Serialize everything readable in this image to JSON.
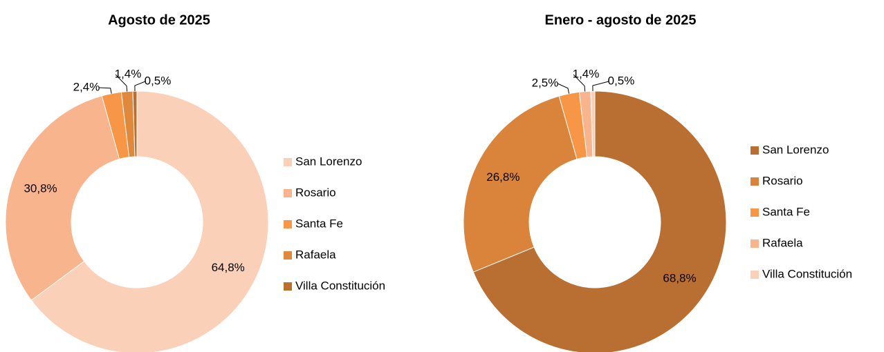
{
  "chart_data": [
    {
      "type": "donut",
      "title": "Agosto de 2025",
      "categories": [
        "San Lorenzo",
        "Rosario",
        "Santa Fe",
        "Rafaela",
        "Villa Constitución"
      ],
      "values": [
        64.8,
        30.8,
        2.4,
        1.4,
        0.5
      ],
      "value_labels": [
        "64,8%",
        "30,8%",
        "2,4%",
        "1,4%",
        "0,5%"
      ],
      "colors": [
        "#fbd0b9",
        "#f8b48c",
        "#f79646",
        "#e0883c",
        "#b96f32"
      ],
      "legend": "right"
    },
    {
      "type": "donut",
      "title": "Enero - agosto de 2025",
      "categories": [
        "San Lorenzo",
        "Rosario",
        "Santa Fe",
        "Rafaela",
        "Villa Constitución"
      ],
      "values": [
        68.8,
        26.8,
        2.5,
        1.4,
        0.5
      ],
      "value_labels": [
        "68,8%",
        "26,8%",
        "2,5%",
        "1,4%",
        "0,5%"
      ],
      "colors": [
        "#b96f32",
        "#d9833b",
        "#f79646",
        "#f8b48c",
        "#fbd0b9"
      ],
      "legend": "right"
    }
  ]
}
